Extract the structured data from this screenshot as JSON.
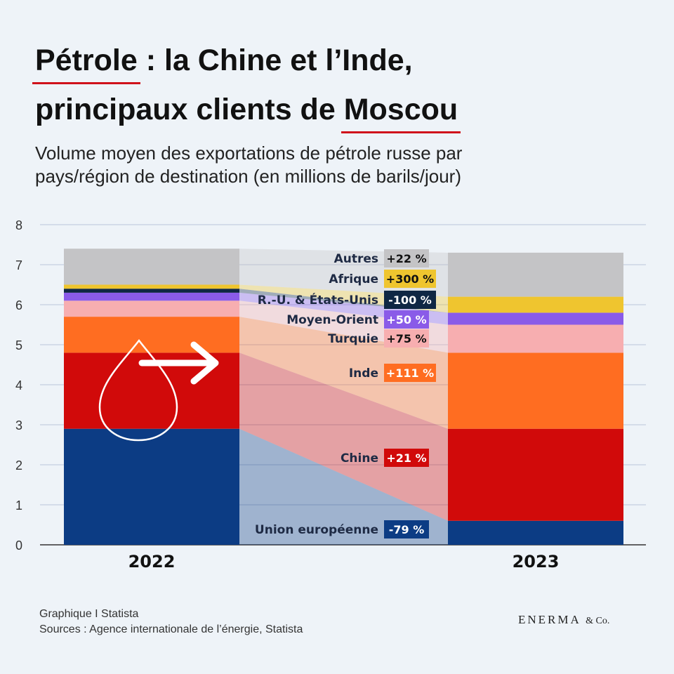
{
  "title": {
    "line1_word": "Pétrole",
    "line1_rest": " : la Chine et l’Inde,",
    "line2_rest": "principaux clients de ",
    "line2_word": "Moscou"
  },
  "subtitle": {
    "line1": "Volume moyen des exportations de pétrole russe par",
    "line2": "pays/région de destination (en millions de barils/jour)"
  },
  "chart_data": {
    "type": "bar",
    "subtype": "stacked",
    "categories": [
      "2022",
      "2023"
    ],
    "ylim": [
      0,
      8
    ],
    "yticks": [
      0,
      1,
      2,
      3,
      4,
      5,
      6,
      7,
      8
    ],
    "grid": true,
    "series": [
      {
        "name": "Union européenne",
        "change": "-79 %",
        "color": "#0c3c84",
        "values": [
          2.9,
          0.6
        ]
      },
      {
        "name": "Chine",
        "change": "+21 %",
        "color": "#d10a0a",
        "values": [
          1.9,
          2.3
        ]
      },
      {
        "name": "Inde",
        "change": "+111 %",
        "color": "#ff6d21",
        "values": [
          0.9,
          1.9
        ]
      },
      {
        "name": "Turquie",
        "change": "+75 %",
        "color": "#f7aeb0",
        "values": [
          0.4,
          0.7
        ]
      },
      {
        "name": "Moyen-Orient",
        "change": "+50 %",
        "color": "#8a5be8",
        "values": [
          0.2,
          0.3
        ]
      },
      {
        "name": "R.-U. & États-Unis",
        "change": "-100 %",
        "color": "#0f2744",
        "values": [
          0.1,
          0.0
        ]
      },
      {
        "name": "Afrique",
        "change": "+300 %",
        "color": "#efc52f",
        "values": [
          0.1,
          0.4
        ]
      },
      {
        "name": "Autres",
        "change": "+22 %",
        "color": "#c4c4c6",
        "values": [
          0.9,
          1.1
        ]
      }
    ]
  },
  "footer": {
    "line1": "Graphique I Statista",
    "line2": "Sources : Agence internationale de l’énergie, Statista"
  },
  "brand": {
    "name": "ENERMA",
    "suffix": "& Co."
  },
  "icons": {
    "drop": "oil-drop-icon",
    "arrow": "arrow-right-icon"
  }
}
